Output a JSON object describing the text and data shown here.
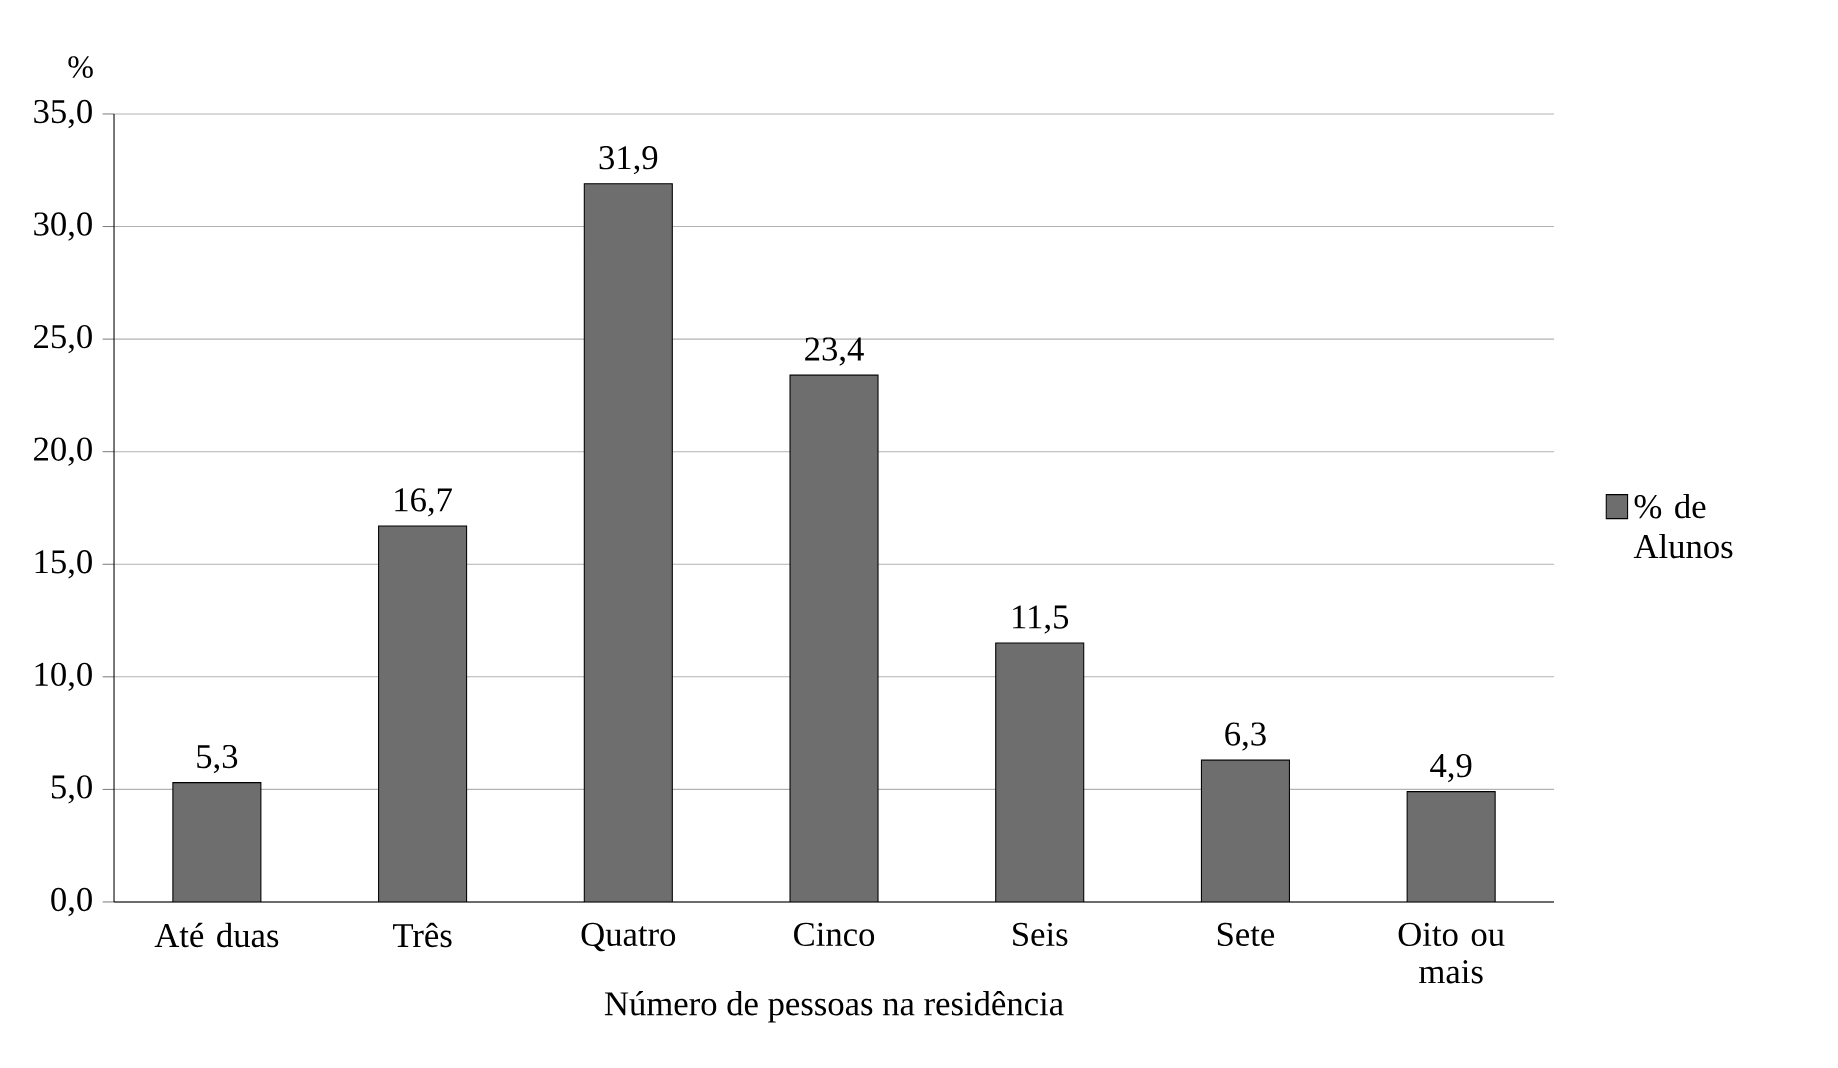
{
  "chart_data": {
    "type": "bar",
    "xlabel": "Número de pessoas na residência",
    "ylabel": "%",
    "categories": [
      "Até duas",
      "Três",
      "Quatro",
      "Cinco",
      "Seis",
      "Sete",
      "Oito ou mais"
    ],
    "series": [
      {
        "name": "% de Alunos",
        "color": "#6e6e6e",
        "values": [
          5.3,
          16.7,
          31.9,
          23.4,
          11.5,
          6.3,
          4.9
        ],
        "value_labels": [
          "5,3",
          "16,7",
          "31,9",
          "23,4",
          "11,5",
          "6,3",
          "4,9"
        ]
      }
    ],
    "ylim": [
      0,
      35
    ],
    "yticks": [
      {
        "value": 0,
        "label": "0,0"
      },
      {
        "value": 5,
        "label": "5,0"
      },
      {
        "value": 10,
        "label": "10,0"
      },
      {
        "value": 15,
        "label": "15,0"
      },
      {
        "value": 20,
        "label": "20,0"
      },
      {
        "value": 25,
        "label": "25,0"
      },
      {
        "value": 30,
        "label": "30,0"
      },
      {
        "value": 35,
        "label": "35,0"
      }
    ],
    "grid": "y",
    "legend": "right"
  }
}
